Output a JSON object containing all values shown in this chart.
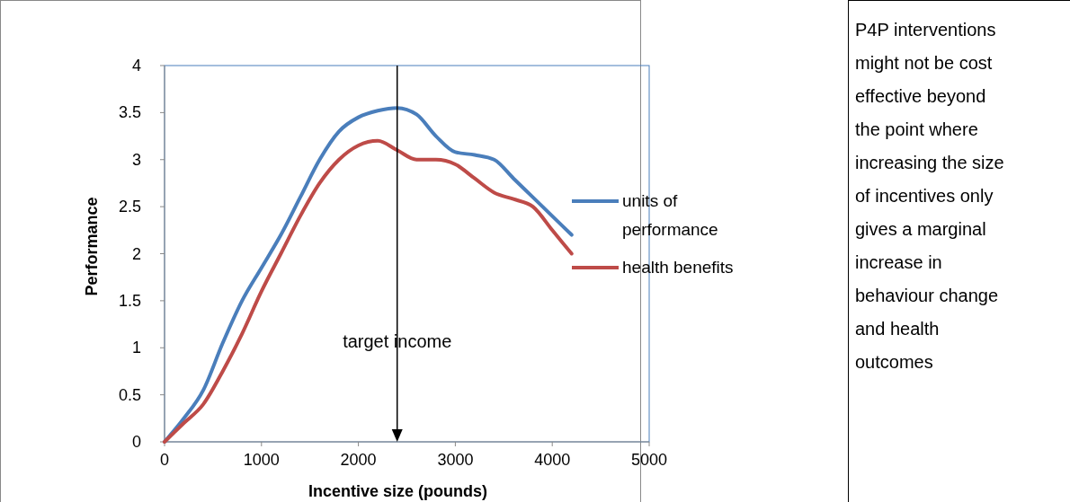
{
  "chart_data": {
    "type": "line",
    "xlabel": "Incentive size (pounds)",
    "ylabel": "Performance",
    "xlim": [
      0,
      5000
    ],
    "xticks": [
      0,
      1000,
      2000,
      3000,
      4000,
      5000
    ],
    "ylim": [
      0,
      4
    ],
    "yticks": [
      0,
      0.5,
      1,
      1.5,
      2,
      2.5,
      3,
      3.5,
      4
    ],
    "grid": false,
    "legend": "right",
    "marker": "none",
    "line_style": "solid",
    "x": [
      0,
      200,
      400,
      600,
      800,
      1000,
      1200,
      1400,
      1600,
      1800,
      2000,
      2200,
      2400,
      2600,
      2800,
      3000,
      3200,
      3400,
      3600,
      3800,
      4000,
      4200
    ],
    "series": [
      {
        "name": "units of performance",
        "color": "#4a7ebb",
        "values": [
          0,
          0.25,
          0.55,
          1.05,
          1.5,
          1.85,
          2.2,
          2.6,
          3.0,
          3.3,
          3.45,
          3.52,
          3.55,
          3.48,
          3.25,
          3.08,
          3.05,
          3.0,
          2.8,
          2.6,
          2.4,
          2.2
        ]
      },
      {
        "name": "health benefits",
        "color": "#be4b48",
        "values": [
          0,
          0.2,
          0.4,
          0.75,
          1.15,
          1.6,
          2.0,
          2.4,
          2.75,
          3.0,
          3.15,
          3.2,
          3.1,
          3.0,
          3.0,
          2.95,
          2.8,
          2.65,
          2.58,
          2.5,
          2.25,
          2.0
        ]
      }
    ],
    "ref_lines": [
      {
        "axis": "x",
        "value": 2400,
        "color": "#000000"
      }
    ],
    "annotations": [
      {
        "text": "target income",
        "x": 2400,
        "y": 1.0
      },
      "P4P interventions might not be cost effective beyond the point where increasing the size of incentives only gives a marginal increase in behaviour change and health outcomes"
    ]
  }
}
